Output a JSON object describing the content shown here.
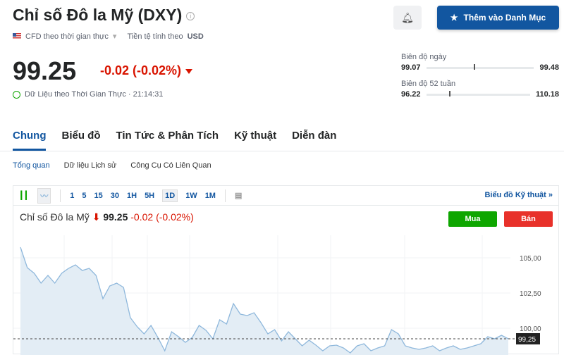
{
  "header": {
    "title": "Chỉ số Đô la Mỹ (DXY)",
    "feed": "CFD theo thời gian thực",
    "currency_label": "Tiền tệ tính theo",
    "currency": "USD",
    "price": "99.25",
    "change": "-0.02 (-0.02%)",
    "realtime": "Dữ Liệu theo Thời Gian Thực · 21:14:31",
    "watchlist_button": "Thêm vào Danh Mục"
  },
  "ranges": {
    "day_label": "Biên độ ngày",
    "day_low": "99.07",
    "day_high": "99.48",
    "day_pos": 0.44,
    "week52_label": "Biên độ 52 tuần",
    "w52_low": "96.22",
    "w52_high": "110.18",
    "w52_pos": 0.22
  },
  "tabs": [
    "Chung",
    "Biểu đồ",
    "Tin Tức & Phân Tích",
    "Kỹ thuật",
    "Diễn đàn"
  ],
  "subtabs": [
    "Tổng quan",
    "Dữ liệu Lịch sử",
    "Công Cụ Có Liên Quan"
  ],
  "chart": {
    "timeframes": [
      "1",
      "5",
      "15",
      "30",
      "1H",
      "5H",
      "1D",
      "1W",
      "1M"
    ],
    "selected": "1D",
    "tech_link": "Biểu đồ Kỹ thuật »",
    "name": "Chỉ số Đô la Mỹ",
    "price": "99.25",
    "change": "-0.02 (-0.02%)",
    "buy": "Mua",
    "sell": "Bán",
    "current_label": "99,25",
    "line_color": "#8fb8dc",
    "fill_color": "#e3edf5"
  },
  "chart_data": {
    "type": "area",
    "y_ticks": [
      "105,00",
      "102,50",
      "100,00"
    ],
    "y_tick_values": [
      105,
      102.5,
      100
    ],
    "current": 99.25,
    "values": [
      105.75,
      104.3,
      103.9,
      103.2,
      103.75,
      103.2,
      103.9,
      104.25,
      104.5,
      104.1,
      104.25,
      103.75,
      102.1,
      103,
      103.2,
      102.9,
      100.75,
      100.1,
      99.6,
      100.2,
      99.35,
      98.4,
      99.75,
      99.4,
      99,
      99.35,
      100.2,
      99.85,
      99.25,
      100.6,
      100.3,
      101.75,
      101,
      100.9,
      101.1,
      100.4,
      99.6,
      99.9,
      99.1,
      99.75,
      99.25,
      98.75,
      99.15,
      98.8,
      98.4,
      98.75,
      98.8,
      98.6,
      98.25,
      98.75,
      98.9,
      98.4,
      98.6,
      98.75,
      99.9,
      99.6,
      98.75,
      98.6,
      98.5,
      98.6,
      98.75,
      98.4,
      98.6,
      98.75,
      98.5,
      98.6,
      98.75,
      98.9,
      99.4,
      99.25,
      99.5,
      99.25
    ]
  }
}
